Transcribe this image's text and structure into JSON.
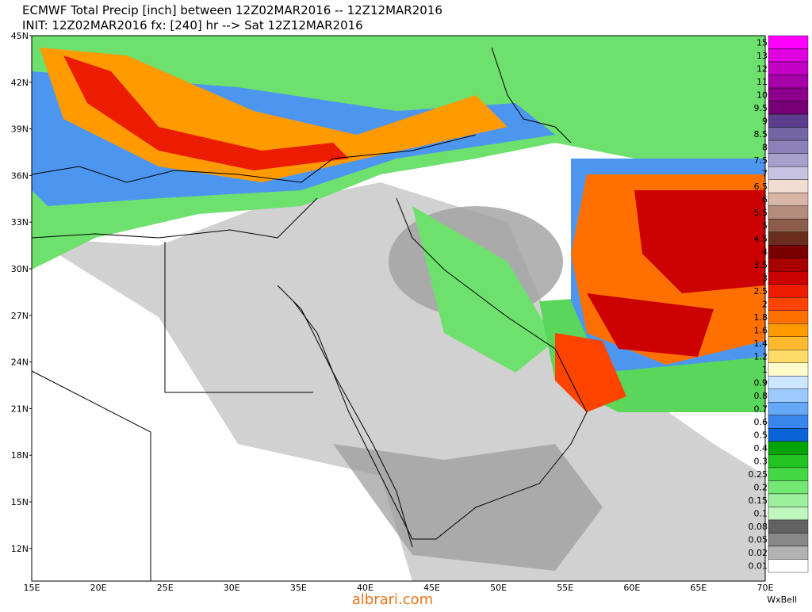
{
  "header": {
    "line1": "ECMWF Total Precip [inch] between 12Z02MAR2016 -- 12Z12MAR2016",
    "line2": "INIT: 12Z02MAR2016 fx: [240] hr --> Sat 12Z12MAR2016"
  },
  "lat_labels": [
    "45N",
    "42N",
    "39N",
    "36N",
    "33N",
    "30N",
    "27N",
    "24N",
    "21N",
    "18N",
    "15N",
    "12N"
  ],
  "lon_labels": [
    "15E",
    "20E",
    "25E",
    "30E",
    "35E",
    "40E",
    "45E",
    "50E",
    "55E",
    "60E",
    "65E",
    "70E"
  ],
  "colorbar": [
    {
      "label": "15",
      "color": "#ff00ff"
    },
    {
      "label": "13",
      "color": "#e000e0"
    },
    {
      "label": "12",
      "color": "#c400c4"
    },
    {
      "label": "11",
      "color": "#a800a8"
    },
    {
      "label": "10",
      "color": "#8c008c"
    },
    {
      "label": "9.5",
      "color": "#760076"
    },
    {
      "label": "9",
      "color": "#5c3c8c"
    },
    {
      "label": "8.5",
      "color": "#7466a4"
    },
    {
      "label": "8",
      "color": "#8c80b8"
    },
    {
      "label": "7.5",
      "color": "#a8a0cc"
    },
    {
      "label": "7",
      "color": "#c8c2e2"
    },
    {
      "label": "6.5",
      "color": "#f2ddd2"
    },
    {
      "label": "6",
      "color": "#d8b6a6"
    },
    {
      "label": "5.5",
      "color": "#b48c7c"
    },
    {
      "label": "5",
      "color": "#8c5c4c"
    },
    {
      "label": "4.5",
      "color": "#6a2c1c"
    },
    {
      "label": "4",
      "color": "#7a0000"
    },
    {
      "label": "3.5",
      "color": "#a80000"
    },
    {
      "label": "3",
      "color": "#cc0000"
    },
    {
      "label": "2.5",
      "color": "#ec1c00"
    },
    {
      "label": "2",
      "color": "#ff4400"
    },
    {
      "label": "1.8",
      "color": "#ff7000"
    },
    {
      "label": "1.6",
      "color": "#ff9a00"
    },
    {
      "label": "1.4",
      "color": "#ffba30"
    },
    {
      "label": "1.2",
      "color": "#ffdc6a"
    },
    {
      "label": "1",
      "color": "#fffccc"
    },
    {
      "label": "0.9",
      "color": "#cce6ff"
    },
    {
      "label": "0.8",
      "color": "#9ccaff"
    },
    {
      "label": "0.7",
      "color": "#66a8f8"
    },
    {
      "label": "0.6",
      "color": "#3886ec"
    },
    {
      "label": "0.5",
      "color": "#0a64d8"
    },
    {
      "label": "0.4",
      "color": "#00a400"
    },
    {
      "label": "0.3",
      "color": "#22c422"
    },
    {
      "label": "0.25",
      "color": "#44d844"
    },
    {
      "label": "0.2",
      "color": "#74e874"
    },
    {
      "label": "0.15",
      "color": "#9cf09c"
    },
    {
      "label": "0.1",
      "color": "#bef6be"
    },
    {
      "label": "0.08",
      "color": "#626262"
    },
    {
      "label": "0.05",
      "color": "#888888"
    },
    {
      "label": "0.02",
      "color": "#b2b2b2"
    },
    {
      "label": "0.01",
      "color": "#ffffff"
    }
  ],
  "watermark": "albrari.com",
  "credit": "WxBell"
}
